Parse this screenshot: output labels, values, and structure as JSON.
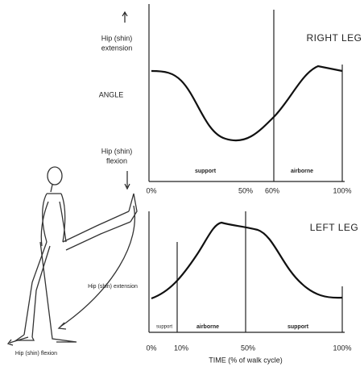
{
  "y_axis": {
    "top_label": [
      "Hip (shin)",
      "extension"
    ],
    "middle_label": "ANGLE",
    "bottom_label": [
      "Hip (shin)",
      "flexion"
    ]
  },
  "charts": [
    {
      "title": "RIGHT LEG",
      "phases": [
        "support",
        "airborne"
      ],
      "ticks": [
        "0%",
        "50%",
        "60%",
        "100%"
      ]
    },
    {
      "title": "LEFT LEG",
      "phases": [
        "support",
        "airborne",
        "support"
      ],
      "ticks": [
        "0%",
        "10%",
        "50%",
        "100%"
      ]
    }
  ],
  "x_axis_label": "TIME (% of walk cycle)",
  "figure_labels": {
    "extension": "Hip (shin) extension",
    "flexion": "Hip (shin) flexion"
  }
}
